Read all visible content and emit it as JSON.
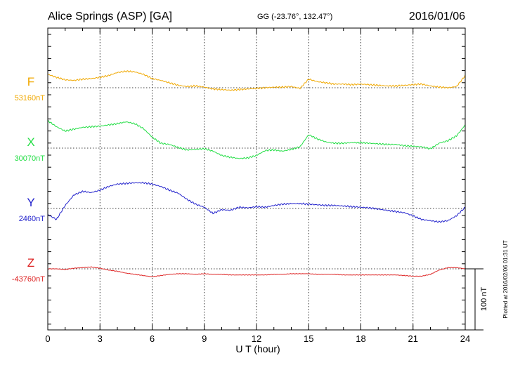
{
  "chart_data": {
    "type": "line",
    "title": "Alice Springs (ASP)  [GA]",
    "coords": "GG (-23.76°, 132.47°)",
    "date": "2016/01/06",
    "xlabel": "U T (hour)",
    "xlim": [
      0,
      24
    ],
    "xticks": [
      "0",
      "3",
      "6",
      "9",
      "12",
      "15",
      "18",
      "21",
      "24"
    ],
    "scale_label": "100 nT",
    "footer": "Plotted at 2016/02/06 01:31  UT",
    "grid": true,
    "series": [
      {
        "name": "F",
        "baseline_label": "53160nT",
        "color": "#f0a800",
        "x": [
          0,
          0.5,
          1,
          1.5,
          2,
          2.5,
          3,
          3.5,
          4,
          4.5,
          5,
          5.5,
          6,
          6.5,
          7,
          7.5,
          8,
          8.5,
          9,
          9.5,
          10,
          10.5,
          11,
          11.5,
          12,
          12.5,
          13,
          13.5,
          14,
          14.5,
          15,
          15.5,
          16,
          16.5,
          17,
          17.5,
          18,
          18.5,
          19,
          19.5,
          20,
          20.5,
          21,
          21.5,
          22,
          22.5,
          23,
          23.5,
          24
        ],
        "y": [
          22,
          17,
          13,
          12,
          14,
          15,
          17,
          20,
          25,
          27,
          26,
          22,
          15,
          12,
          8,
          4,
          2,
          3,
          1,
          -2,
          -3,
          -4,
          -3,
          -2,
          -1,
          0,
          1,
          1,
          2,
          -1,
          14,
          10,
          8,
          6,
          6,
          5,
          6,
          5,
          4,
          3,
          3,
          4,
          5,
          6,
          3,
          1,
          0,
          2,
          20
        ]
      },
      {
        "name": "X",
        "baseline_label": "30070nT",
        "color": "#22dd44",
        "x": [
          0,
          0.5,
          1,
          1.5,
          2,
          2.5,
          3,
          3.5,
          4,
          4.5,
          5,
          5.5,
          6,
          6.5,
          7,
          7.5,
          8,
          8.5,
          9,
          9.5,
          10,
          10.5,
          11,
          11.5,
          12,
          12.5,
          13,
          13.5,
          14,
          14.5,
          15,
          15.5,
          16,
          16.5,
          17,
          17.5,
          18,
          18.5,
          19,
          19.5,
          20,
          20.5,
          21,
          21.5,
          22,
          22.5,
          23,
          23.5,
          24
        ],
        "y": [
          45,
          35,
          28,
          31,
          34,
          35,
          36,
          38,
          40,
          43,
          40,
          32,
          18,
          8,
          6,
          1,
          -3,
          -2,
          -1,
          -5,
          -12,
          -15,
          -17,
          -16,
          -12,
          -4,
          -3,
          -5,
          -2,
          2,
          22,
          15,
          10,
          8,
          8,
          9,
          9,
          8,
          7,
          6,
          6,
          4,
          3,
          2,
          -1,
          8,
          12,
          20,
          38
        ]
      },
      {
        "name": "Y",
        "baseline_label": "2460nT",
        "color": "#2222cc",
        "x": [
          0,
          0.5,
          1,
          1.5,
          2,
          2.5,
          3,
          3.5,
          4,
          4.5,
          5,
          5.5,
          6,
          6.5,
          7,
          7.5,
          8,
          8.5,
          9,
          9.5,
          10,
          10.5,
          11,
          11.5,
          12,
          12.5,
          13,
          13.5,
          14,
          14.5,
          15,
          15.5,
          16,
          16.5,
          17,
          17.5,
          18,
          18.5,
          19,
          19.5,
          20,
          20.5,
          21,
          21.5,
          22,
          22.5,
          23,
          23.5,
          24
        ],
        "y": [
          -10,
          -18,
          5,
          22,
          28,
          26,
          30,
          36,
          40,
          41,
          42,
          42,
          40,
          36,
          30,
          25,
          15,
          7,
          2,
          -8,
          -2,
          -3,
          2,
          1,
          3,
          2,
          5,
          7,
          8,
          8,
          7,
          6,
          5,
          5,
          4,
          3,
          2,
          1,
          -1,
          -3,
          -5,
          -7,
          -12,
          -18,
          -20,
          -22,
          -20,
          -12,
          2
        ]
      },
      {
        "name": "Z",
        "baseline_label": "-43760nT",
        "color": "#dd2222",
        "x": [
          0,
          0.5,
          1,
          1.5,
          2,
          2.5,
          3,
          3.5,
          4,
          4.5,
          5,
          5.5,
          6,
          6.5,
          7,
          7.5,
          8,
          8.5,
          9,
          9.5,
          10,
          10.5,
          11,
          11.5,
          12,
          12.5,
          13,
          13.5,
          14,
          14.5,
          15,
          15.5,
          16,
          16.5,
          17,
          17.5,
          18,
          18.5,
          19,
          19.5,
          20,
          20.5,
          21,
          21.5,
          22,
          22.5,
          23,
          23.5,
          24
        ],
        "y": [
          0,
          0,
          -1,
          1,
          2,
          3,
          1,
          -2,
          -4,
          -7,
          -9,
          -11,
          -13,
          -11,
          -9,
          -8,
          -8,
          -9,
          -8,
          -9,
          -9,
          -10,
          -10,
          -10,
          -10,
          -10,
          -9,
          -9,
          -8,
          -8,
          -8,
          -9,
          -9,
          -9,
          -10,
          -10,
          -10,
          -10,
          -10,
          -10,
          -10,
          -11,
          -12,
          -12,
          -9,
          -2,
          2,
          2,
          0
        ]
      }
    ]
  }
}
